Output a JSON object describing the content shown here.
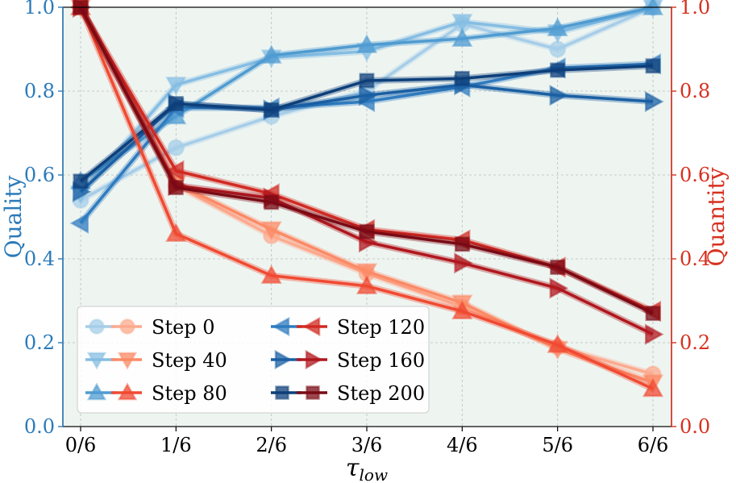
{
  "chart_data": {
    "type": "line",
    "x": [
      0,
      1,
      2,
      3,
      4,
      5,
      6
    ],
    "xtick_labels": [
      "0/6",
      "1/6",
      "2/6",
      "3/6",
      "4/6",
      "5/6",
      "6/6"
    ],
    "xlabel": {
      "symbol": "τ",
      "subscript": "low"
    },
    "ylabel_left": "Quality",
    "ylabel_right": "Quantity",
    "ylim_left": [
      0.0,
      1.0
    ],
    "ylim_right": [
      0.0,
      1.0
    ],
    "yticks_left": [
      "0.0",
      "0.2",
      "0.4",
      "0.6",
      "0.8",
      "1.0"
    ],
    "yticks_right": [
      "0.0",
      "0.2",
      "0.4",
      "0.6",
      "0.8",
      "1.0"
    ],
    "grid": true,
    "legend_position": "lower-left",
    "legend_columns": 2,
    "colors": {
      "left_axis": "#2b7bba",
      "right_axis": "#d7301f",
      "plot_bg": "#eef5f1"
    },
    "quality_series": [
      {
        "name": "Step 0",
        "marker": "circle",
        "color": "#a6cde8",
        "values": [
          0.54,
          0.665,
          0.74,
          0.8,
          0.96,
          0.9,
          1.0
        ]
      },
      {
        "name": "Step 40",
        "marker": "triangle-down",
        "color": "#85bde3",
        "values": [
          0.555,
          0.815,
          0.88,
          0.895,
          0.965,
          0.94,
          1.0
        ]
      },
      {
        "name": "Step 80",
        "marker": "triangle-up",
        "color": "#4f9bd1",
        "values": [
          0.585,
          0.74,
          0.885,
          0.91,
          0.925,
          0.95,
          1.0
        ]
      },
      {
        "name": "Step 120",
        "marker": "triangle-left",
        "color": "#2f7bbf",
        "values": [
          0.485,
          0.76,
          0.76,
          0.775,
          0.81,
          0.855,
          0.865
        ]
      },
      {
        "name": "Step 160",
        "marker": "triangle-right",
        "color": "#1a5fa3",
        "values": [
          0.56,
          0.77,
          0.755,
          0.79,
          0.815,
          0.79,
          0.775
        ]
      },
      {
        "name": "Step 200",
        "marker": "square",
        "color": "#0d3f7a",
        "values": [
          0.585,
          0.77,
          0.755,
          0.825,
          0.83,
          0.85,
          0.86
        ]
      }
    ],
    "quantity_series": [
      {
        "name": "Step 0",
        "marker": "circle",
        "color": "#fcaa8e",
        "values": [
          1.0,
          0.575,
          0.455,
          0.365,
          0.285,
          0.19,
          0.125
        ]
      },
      {
        "name": "Step 40",
        "marker": "triangle-down",
        "color": "#fb8a66",
        "values": [
          1.0,
          0.58,
          0.47,
          0.37,
          0.295,
          0.185,
          0.105
        ]
      },
      {
        "name": "Step 80",
        "marker": "triangle-up",
        "color": "#f04a32",
        "values": [
          1.0,
          0.46,
          0.36,
          0.335,
          0.275,
          0.195,
          0.09
        ]
      },
      {
        "name": "Step 120",
        "marker": "triangle-left",
        "color": "#d12a22",
        "values": [
          1.0,
          0.61,
          0.555,
          0.47,
          0.445,
          0.38,
          0.275
        ]
      },
      {
        "name": "Step 160",
        "marker": "triangle-right",
        "color": "#b0171e",
        "values": [
          1.0,
          0.575,
          0.545,
          0.44,
          0.39,
          0.33,
          0.22
        ]
      },
      {
        "name": "Step 200",
        "marker": "square",
        "color": "#7a0a14",
        "values": [
          1.0,
          0.57,
          0.535,
          0.465,
          0.435,
          0.38,
          0.27
        ]
      }
    ]
  }
}
